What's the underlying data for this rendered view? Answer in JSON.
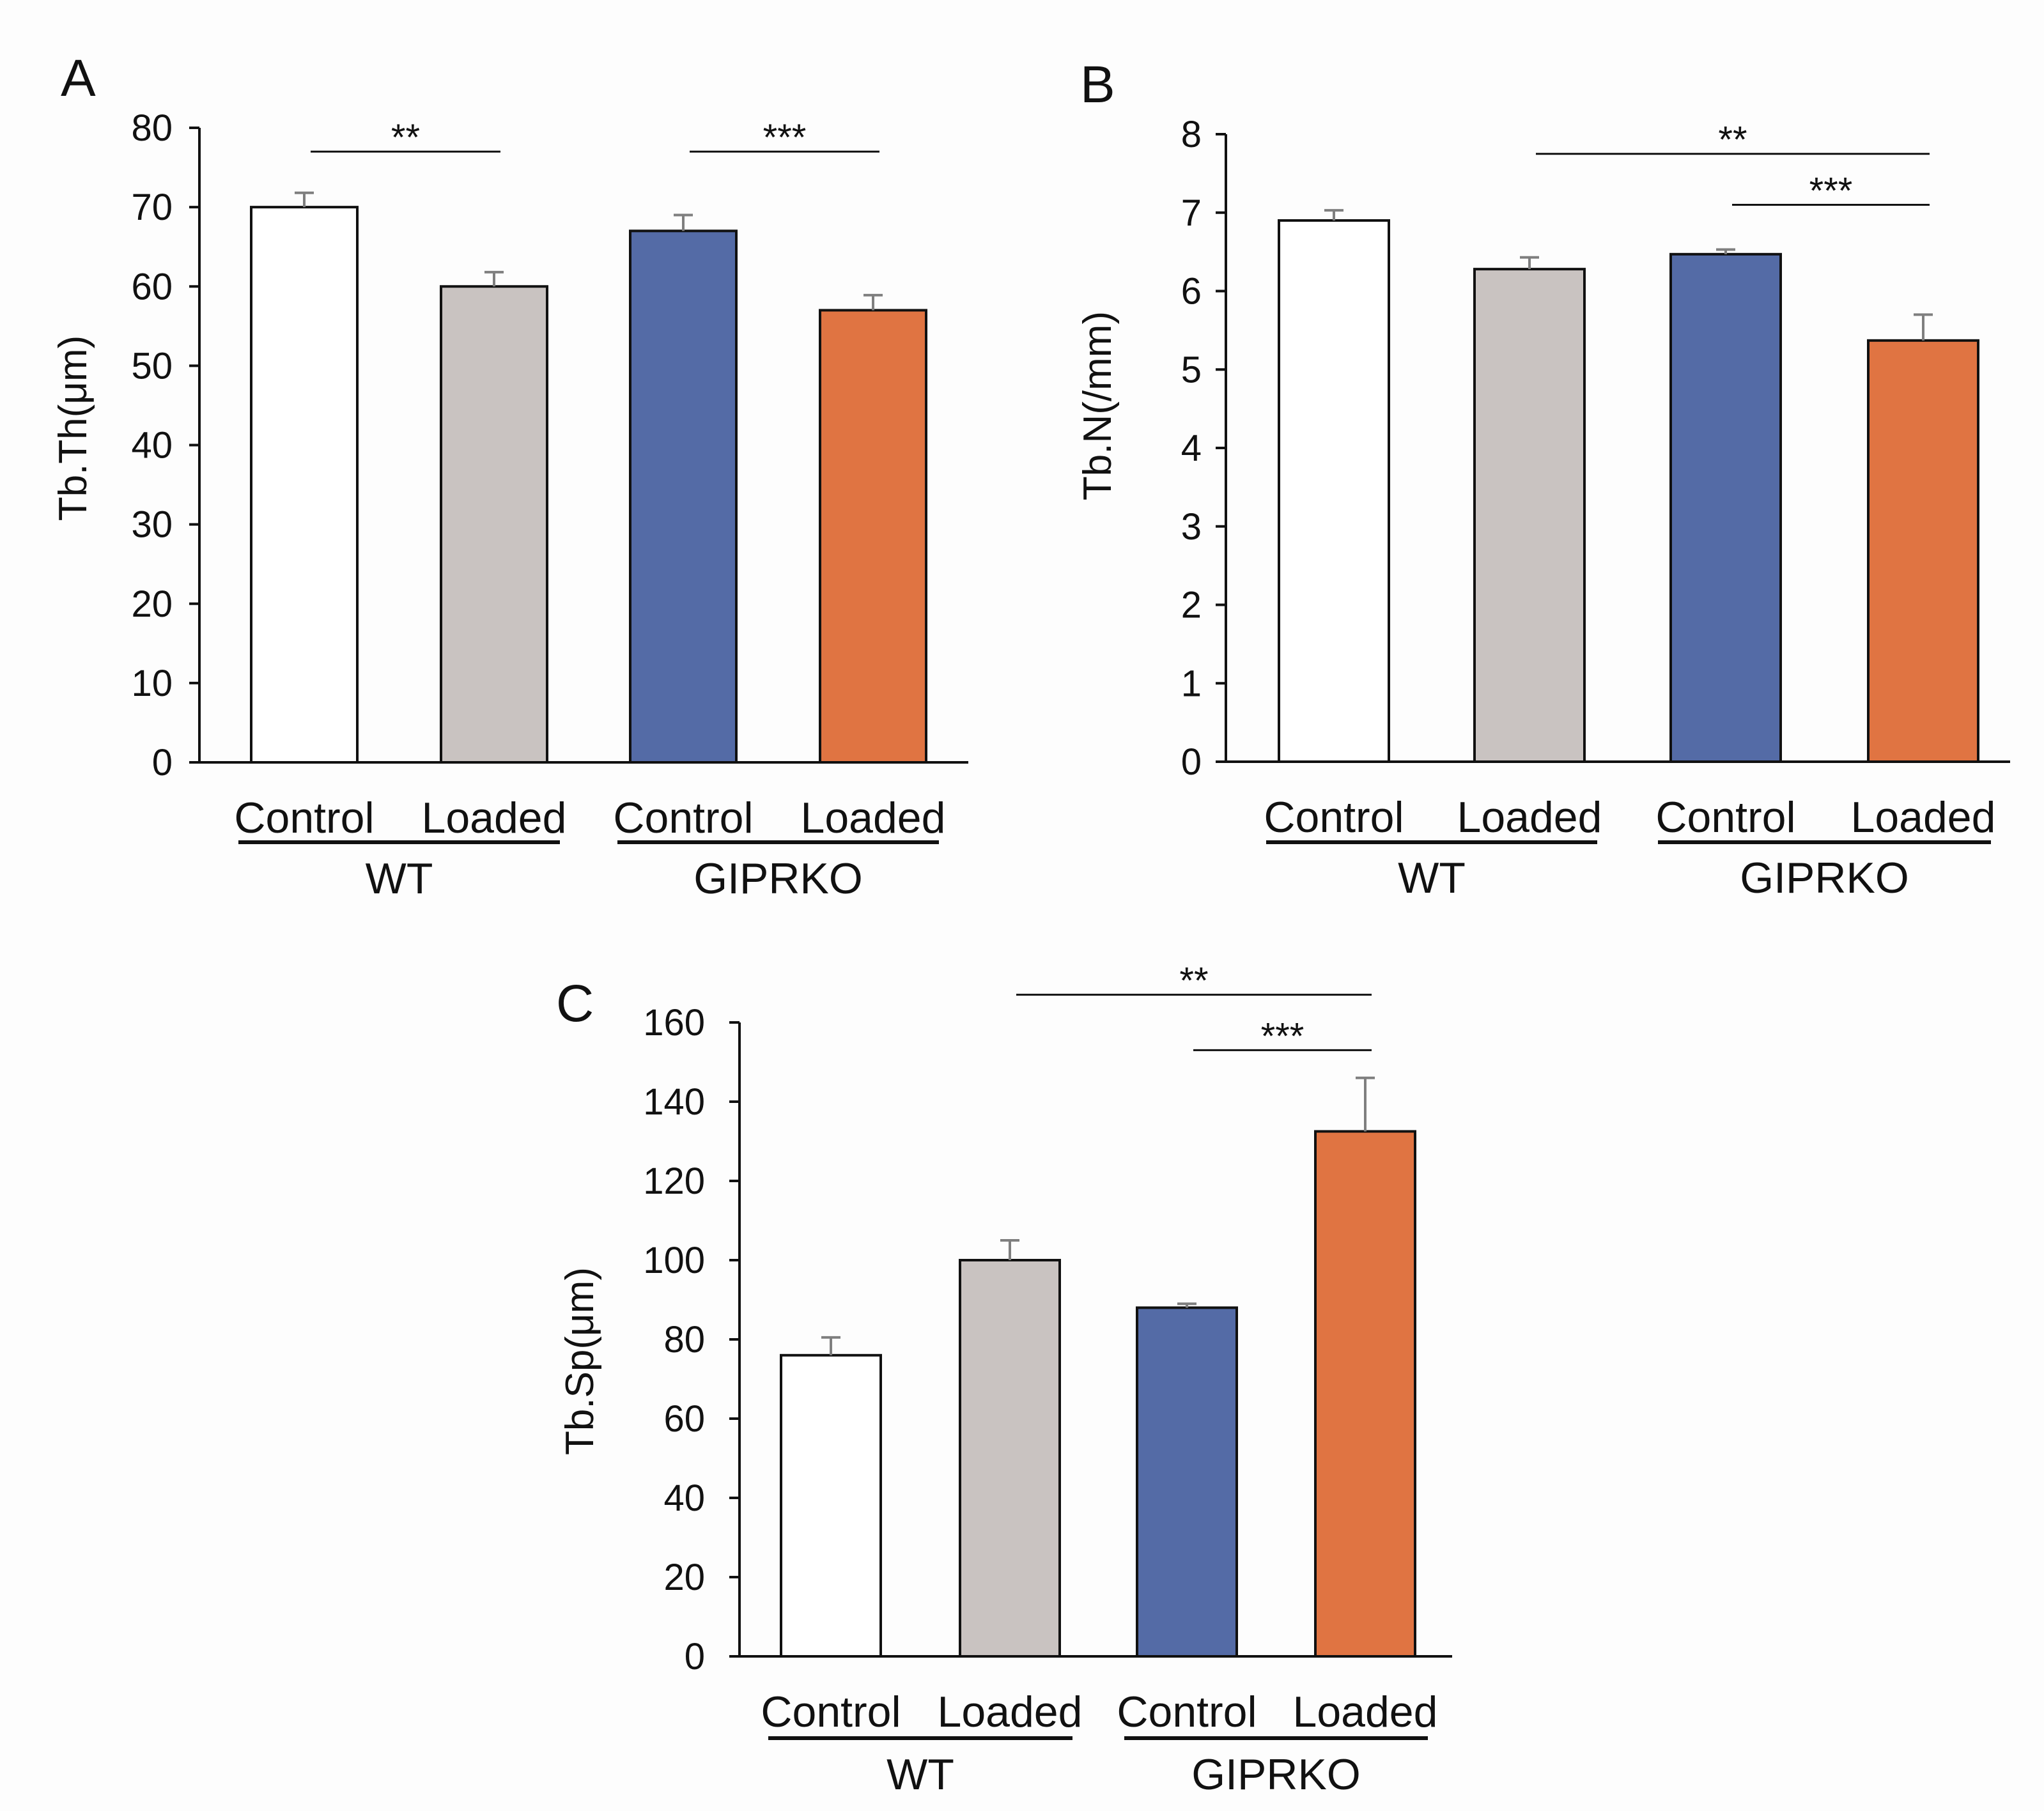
{
  "colors": {
    "wt_control": "#ffffff",
    "wt_loaded": "#c9c3c1",
    "giprko_control": "#546ba6",
    "giprko_loaded": "#e07442",
    "error_bar": "#7f7f7f",
    "axis": "#111111"
  },
  "chart_data": [
    {
      "panel": "A",
      "type": "bar",
      "title": "",
      "ylabel": "Tb.Th(μm)",
      "ylim": [
        0,
        80
      ],
      "yticks": [
        0,
        10,
        20,
        30,
        40,
        50,
        60,
        70,
        80
      ],
      "categories": [
        "Control",
        "Loaded",
        "Control",
        "Loaded"
      ],
      "groups": [
        {
          "label": "WT",
          "members": [
            0,
            1
          ]
        },
        {
          "label": "GIPRKO",
          "members": [
            2,
            3
          ]
        }
      ],
      "values": [
        70,
        60,
        67,
        57
      ],
      "errors": [
        1.8,
        1.8,
        2.0,
        1.9
      ],
      "fill_keys": [
        "wt_control",
        "wt_loaded",
        "giprko_control",
        "giprko_loaded"
      ],
      "significance": [
        {
          "from": 0,
          "to": 1,
          "label": "**",
          "y": 77
        },
        {
          "from": 2,
          "to": 3,
          "label": "***",
          "y": 77
        }
      ]
    },
    {
      "panel": "B",
      "type": "bar",
      "title": "",
      "ylabel": "Tb.N(/mm)",
      "ylim": [
        0,
        8
      ],
      "yticks": [
        0,
        1,
        2,
        3,
        4,
        5,
        6,
        7,
        8
      ],
      "categories": [
        "Control",
        "Loaded",
        "Control",
        "Loaded"
      ],
      "groups": [
        {
          "label": "WT",
          "members": [
            0,
            1
          ]
        },
        {
          "label": "GIPRKO",
          "members": [
            2,
            3
          ]
        }
      ],
      "values": [
        6.9,
        6.28,
        6.47,
        5.37
      ],
      "errors": [
        0.13,
        0.15,
        0.06,
        0.33
      ],
      "fill_keys": [
        "wt_control",
        "wt_loaded",
        "giprko_control",
        "giprko_loaded"
      ],
      "significance": [
        {
          "from": 1,
          "to": 3,
          "label": "**",
          "y": 7.75
        },
        {
          "from": 2,
          "to": 3,
          "label": "***",
          "y": 7.1
        }
      ]
    },
    {
      "panel": "C",
      "type": "bar",
      "title": "",
      "ylabel": "Tb.Sp(μm)",
      "ylim": [
        0,
        160
      ],
      "yticks": [
        0,
        20,
        40,
        60,
        80,
        100,
        120,
        140,
        160
      ],
      "categories": [
        "Control",
        "Loaded",
        "Control",
        "Loaded"
      ],
      "groups": [
        {
          "label": "WT",
          "members": [
            0,
            1
          ]
        },
        {
          "label": "GIPRKO",
          "members": [
            2,
            3
          ]
        }
      ],
      "values": [
        76,
        100,
        88,
        132.5
      ],
      "errors": [
        4.5,
        5,
        1,
        13.5
      ],
      "fill_keys": [
        "wt_control",
        "wt_loaded",
        "giprko_control",
        "giprko_loaded"
      ],
      "significance": [
        {
          "from": 1,
          "to": 3,
          "label": "**",
          "y": 167
        },
        {
          "from": 2,
          "to": 3,
          "label": "***",
          "y": 153
        }
      ]
    }
  ]
}
